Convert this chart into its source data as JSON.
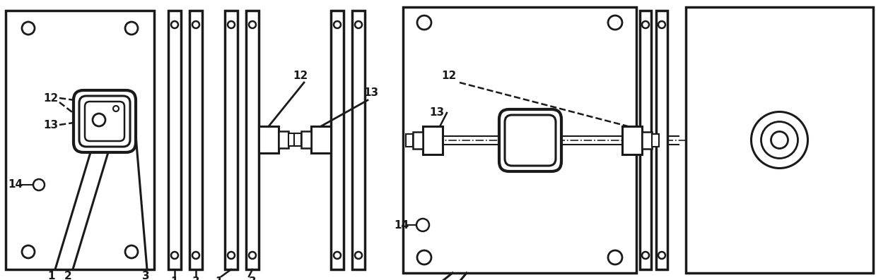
{
  "bg_color": "#ffffff",
  "line_color": "#1a1a1a",
  "fig_width": 12.39,
  "fig_height": 3.97,
  "dpi": 100
}
